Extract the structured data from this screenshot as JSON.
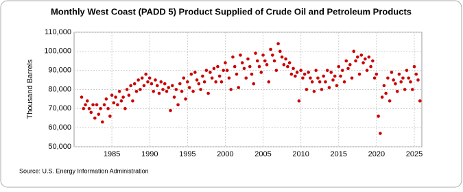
{
  "chart_data": {
    "type": "scatter",
    "title": "Monthly West Coast (PADD 5) Product Supplied of Crude Oil and Petroleum Products",
    "y_label": "Thousand Barrels",
    "source": "Source: U.S. Energy Information Administration",
    "xlim": [
      1980,
      2026
    ],
    "xticks": [
      1985,
      1990,
      1995,
      2000,
      2005,
      2010,
      2015,
      2020,
      2025
    ],
    "ylim": [
      50000,
      110000
    ],
    "yticks": [
      {
        "value": 50000,
        "label": "50,000"
      },
      {
        "value": 60000,
        "label": "60,000"
      },
      {
        "value": 70000,
        "label": "70,000"
      },
      {
        "value": 80000,
        "label": "80,000"
      },
      {
        "value": 90000,
        "label": "90,000"
      },
      {
        "value": 100000,
        "label": "100,000"
      },
      {
        "value": 110000,
        "label": "110,000"
      }
    ],
    "grid": true,
    "color": "#cc0000",
    "x": [
      1981,
      1981.25,
      1981.5,
      1981.75,
      1982,
      1982.25,
      1982.5,
      1982.75,
      1983,
      1983.25,
      1983.5,
      1983.75,
      1984,
      1984.25,
      1984.5,
      1984.75,
      1985,
      1985.25,
      1985.5,
      1985.75,
      1986,
      1986.25,
      1986.5,
      1986.75,
      1987,
      1987.25,
      1987.5,
      1987.75,
      1988,
      1988.25,
      1988.5,
      1988.75,
      1989,
      1989.25,
      1989.5,
      1989.75,
      1990,
      1990.25,
      1990.5,
      1990.75,
      1991,
      1991.25,
      1991.5,
      1991.75,
      1992,
      1992.25,
      1992.5,
      1992.75,
      1993,
      1993.25,
      1993.5,
      1993.75,
      1994,
      1994.25,
      1994.5,
      1994.75,
      1995,
      1995.25,
      1995.5,
      1995.75,
      1996,
      1996.25,
      1996.5,
      1996.75,
      1997,
      1997.25,
      1997.5,
      1997.75,
      1998,
      1998.25,
      1998.5,
      1998.75,
      1999,
      1999.25,
      1999.5,
      1999.75,
      2000,
      2000.25,
      2000.5,
      2000.75,
      2001,
      2001.25,
      2001.5,
      2001.75,
      2002,
      2002.25,
      2002.5,
      2002.75,
      2003,
      2003.25,
      2003.5,
      2003.75,
      2004,
      2004.25,
      2004.5,
      2004.75,
      2005,
      2005.25,
      2005.5,
      2005.75,
      2006,
      2006.25,
      2006.5,
      2006.75,
      2007,
      2007.25,
      2007.5,
      2007.75,
      2008,
      2008.25,
      2008.5,
      2008.75,
      2009,
      2009.25,
      2009.5,
      2009.75,
      2010,
      2010.25,
      2010.5,
      2010.75,
      2011,
      2011.25,
      2011.5,
      2011.75,
      2012,
      2012.25,
      2012.5,
      2012.75,
      2013,
      2013.25,
      2013.5,
      2013.75,
      2014,
      2014.25,
      2014.5,
      2014.75,
      2015,
      2015.25,
      2015.5,
      2015.75,
      2016,
      2016.25,
      2016.5,
      2016.75,
      2017,
      2017.25,
      2017.5,
      2017.75,
      2018,
      2018.25,
      2018.5,
      2018.75,
      2019,
      2019.25,
      2019.5,
      2019.75,
      2020,
      2020.25,
      2020.5,
      2020.75,
      2021,
      2021.25,
      2021.5,
      2021.75,
      2022,
      2022.25,
      2022.5,
      2022.75,
      2023,
      2023.25,
      2023.5,
      2023.75,
      2024,
      2024.25,
      2024.5,
      2024.75,
      2025,
      2025.25,
      2025.5,
      2025.75
    ],
    "values": [
      76000,
      70000,
      72000,
      74000,
      70000,
      68000,
      72000,
      65000,
      72000,
      67000,
      70000,
      63000,
      72000,
      75000,
      70000,
      66000,
      77000,
      73000,
      76000,
      72000,
      79000,
      74000,
      76000,
      70000,
      80000,
      77000,
      82000,
      74000,
      83000,
      79000,
      85000,
      80000,
      86000,
      82000,
      88000,
      84000,
      86000,
      83000,
      79000,
      85000,
      82000,
      78000,
      84000,
      80000,
      83000,
      79000,
      81000,
      69000,
      82000,
      76000,
      80000,
      72000,
      83000,
      79000,
      86000,
      75000,
      84000,
      81000,
      88000,
      79000,
      89000,
      85000,
      83000,
      80000,
      87000,
      84000,
      90000,
      78000,
      89000,
      86000,
      91000,
      84000,
      92000,
      87000,
      84000,
      90000,
      94000,
      90000,
      86000,
      80000,
      97000,
      92000,
      88000,
      81000,
      98000,
      94000,
      91000,
      86000,
      96000,
      92000,
      88000,
      83000,
      99000,
      95000,
      92000,
      89000,
      98000,
      95000,
      93000,
      84000,
      101000,
      98000,
      95000,
      90000,
      104000,
      100000,
      97000,
      93000,
      96000,
      92000,
      94000,
      88000,
      91000,
      87000,
      89000,
      74000,
      90000,
      86000,
      88000,
      80000,
      89000,
      86000,
      84000,
      79000,
      90000,
      86000,
      84000,
      80000,
      87000,
      84000,
      90000,
      81000,
      89000,
      85000,
      87000,
      82000,
      92000,
      87000,
      90000,
      84000,
      95000,
      91000,
      93000,
      86000,
      100000,
      95000,
      97000,
      88000,
      98000,
      94000,
      96000,
      90000,
      97000,
      92000,
      95000,
      86000,
      88000,
      66000,
      57000,
      76000,
      82000,
      78000,
      86000,
      74000,
      89000,
      85000,
      83000,
      79000,
      88000,
      84000,
      86000,
      80000,
      90000,
      86000,
      84000,
      80000,
      92000,
      88000,
      85000,
      74000
    ]
  }
}
